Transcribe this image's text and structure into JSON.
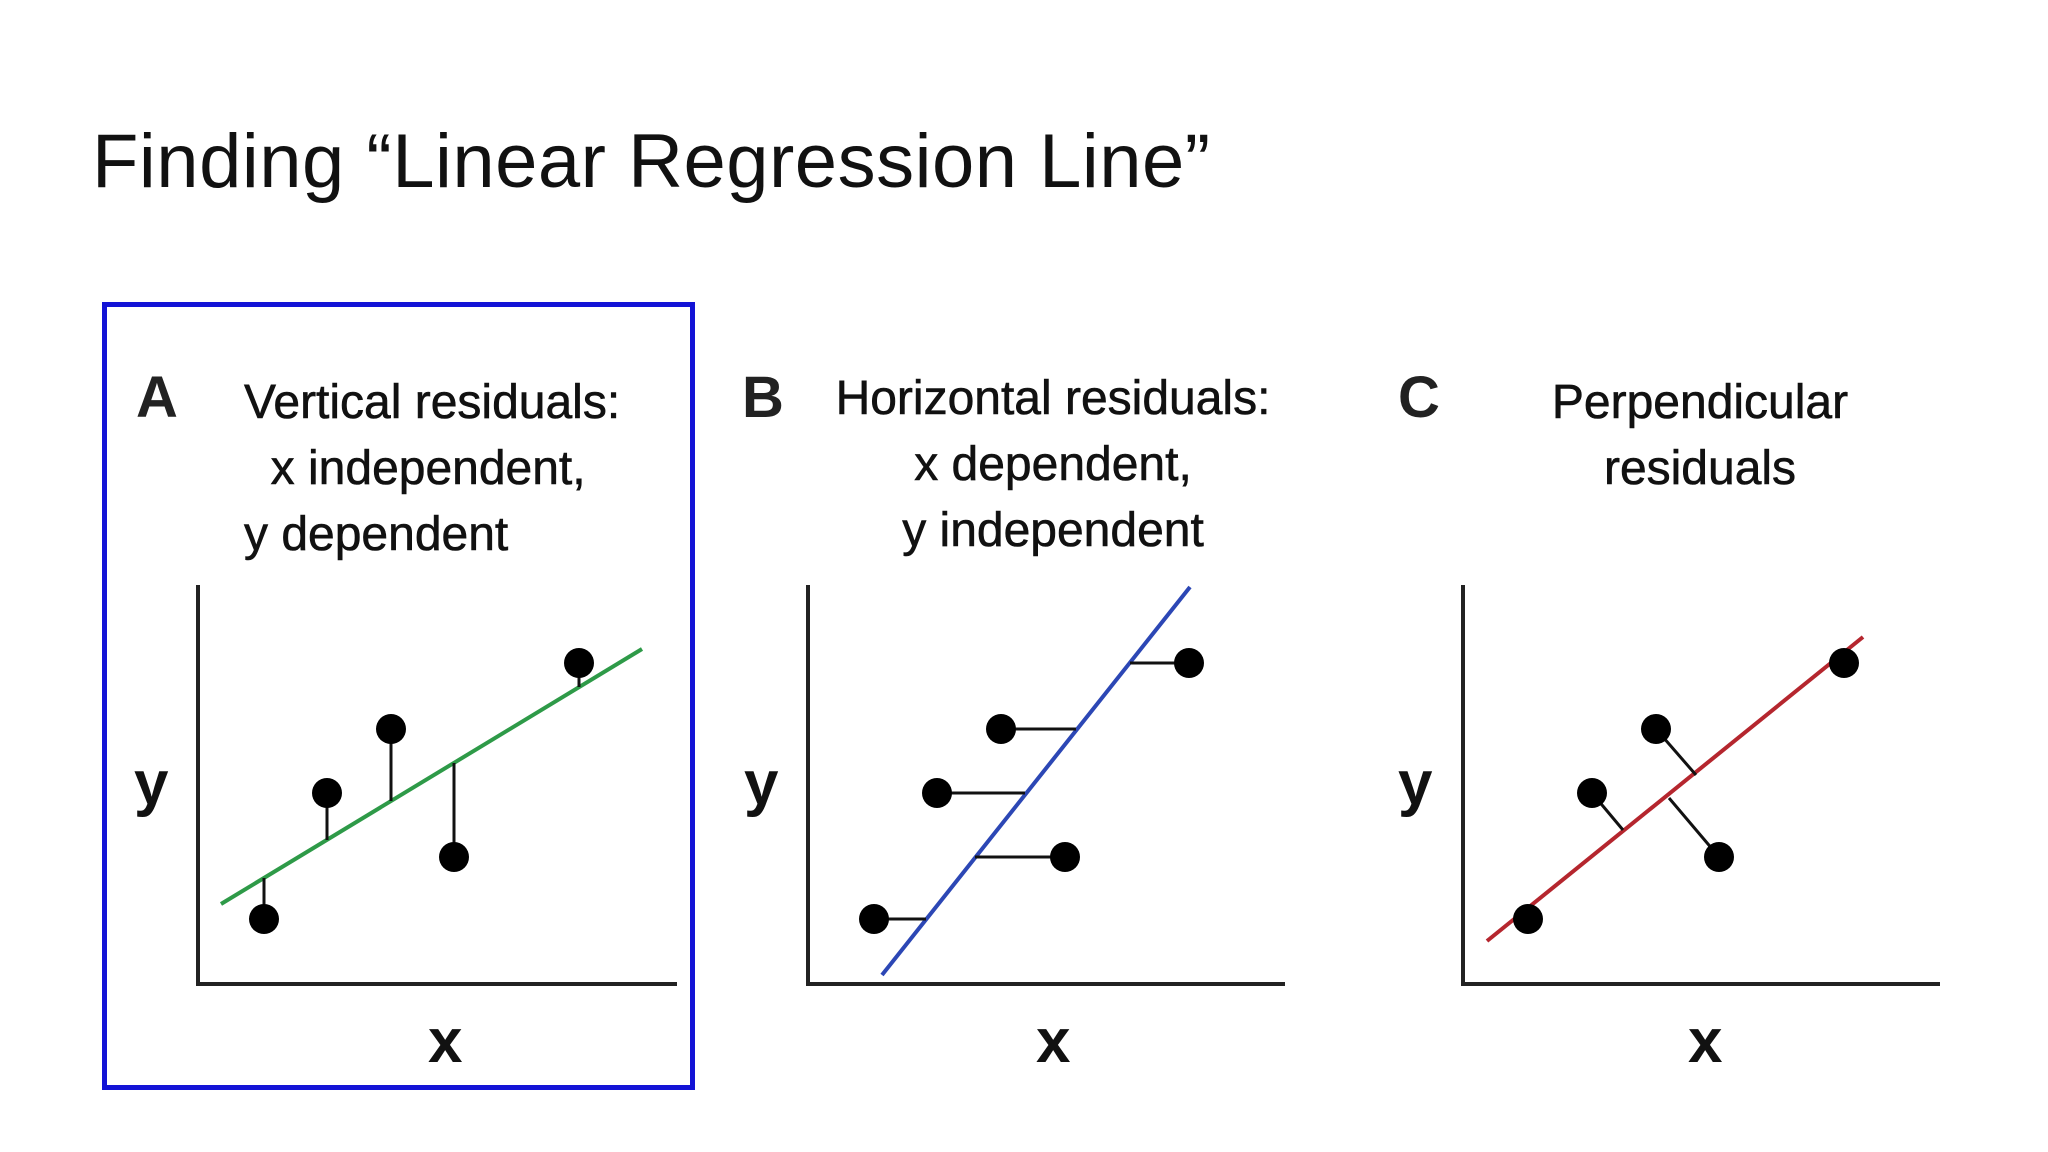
{
  "title": "Finding “Linear Regression Line”",
  "highlight_color": "#1313d6",
  "panels": [
    {
      "letter": "A",
      "heading": "Vertical residuals:\n  x independent,\ny dependent",
      "x_label": "x",
      "y_label": "y",
      "line_color": "#2e9a48",
      "residual_type": "vertical",
      "highlighted": true
    },
    {
      "letter": "B",
      "heading": "Horizontal residuals:\nx dependent,\ny independent",
      "x_label": "x",
      "y_label": "y",
      "line_color": "#2c47b5",
      "residual_type": "horizontal",
      "highlighted": false
    },
    {
      "letter": "C",
      "heading": "Perpendicular\nresiduals",
      "x_label": "x",
      "y_label": "y",
      "line_color": "#b5262e",
      "residual_type": "perpendicular",
      "highlighted": false
    }
  ]
}
